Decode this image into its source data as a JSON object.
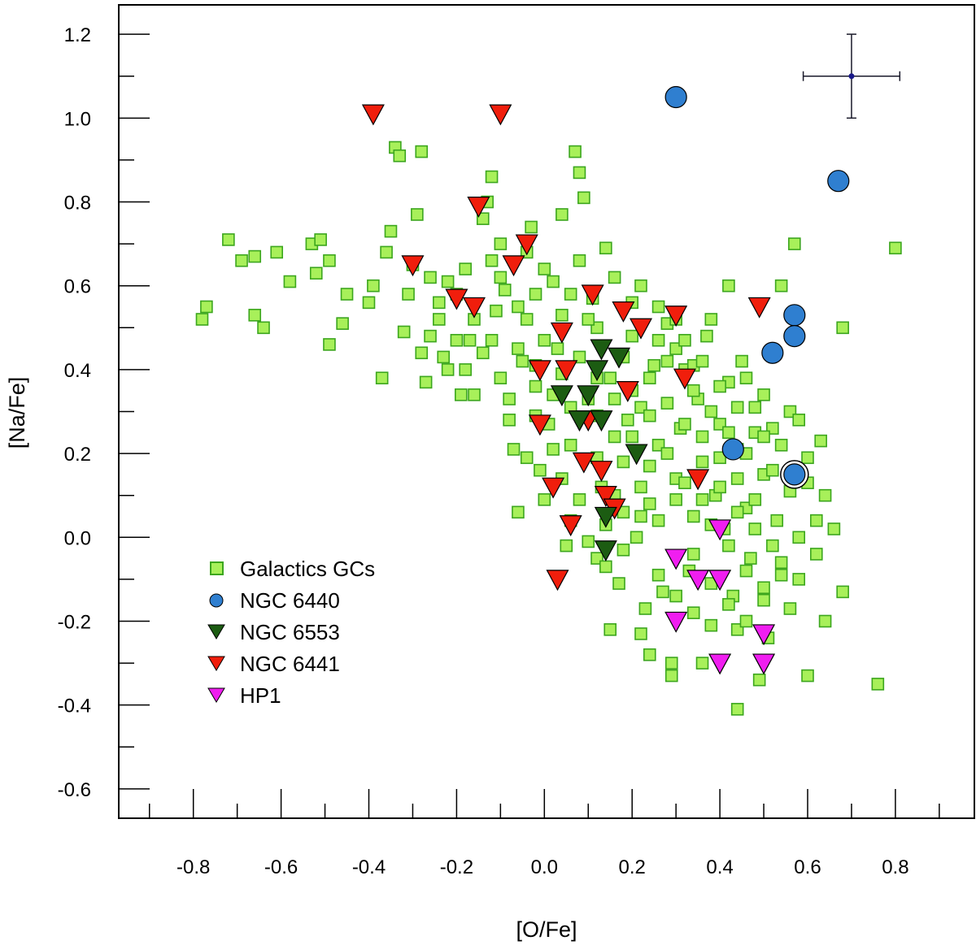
{
  "chart_data": {
    "type": "scatter",
    "title": "",
    "xlabel": "[O/Fe]",
    "ylabel": "[Na/Fe]",
    "xlim": [
      -0.97,
      0.98
    ],
    "ylim": [
      -0.67,
      1.27
    ],
    "x_ticks": [
      "-0.8",
      "-0.6",
      "-0.4",
      "-0.2",
      "0.0",
      "0.2",
      "0.4",
      "0.6",
      "0.8"
    ],
    "x_tick_values": [
      -0.8,
      -0.6,
      -0.4,
      -0.2,
      0.0,
      0.2,
      0.4,
      0.6,
      0.8
    ],
    "y_ticks": [
      "-0.6",
      "-0.4",
      "-0.2",
      "0.0",
      "0.2",
      "0.4",
      "0.6",
      "0.8",
      "1.0",
      "1.2"
    ],
    "y_tick_values": [
      -0.6,
      -0.4,
      -0.2,
      0.0,
      0.2,
      0.4,
      0.6,
      0.8,
      1.0,
      1.2
    ],
    "grid": false,
    "legend_position": "bottom-left",
    "colors": {
      "galactic_fill": "#a8f05a",
      "galactic_edge": "#3ca61e",
      "ngc6440": "#2f7fd0",
      "ngc6553": "#1c5c12",
      "ngc6441": "#f01e0c",
      "hp1": "#f01ef0"
    },
    "error_bar": {
      "x": 0.7,
      "y": 1.1,
      "xerr": 0.11,
      "yerr": 0.1
    },
    "series": [
      {
        "name": "Galactics GCs",
        "marker": "square",
        "points": [
          [
            -0.78,
            0.52
          ],
          [
            -0.77,
            0.55
          ],
          [
            -0.72,
            0.71
          ],
          [
            -0.69,
            0.66
          ],
          [
            -0.66,
            0.67
          ],
          [
            -0.66,
            0.53
          ],
          [
            -0.64,
            0.5
          ],
          [
            -0.61,
            0.68
          ],
          [
            -0.58,
            0.61
          ],
          [
            -0.53,
            0.7
          ],
          [
            -0.52,
            0.63
          ],
          [
            -0.51,
            0.71
          ],
          [
            -0.49,
            0.46
          ],
          [
            -0.49,
            0.66
          ],
          [
            -0.46,
            0.51
          ],
          [
            -0.45,
            0.58
          ],
          [
            -0.4,
            0.56
          ],
          [
            -0.39,
            0.6
          ],
          [
            -0.37,
            0.38
          ],
          [
            -0.36,
            0.68
          ],
          [
            -0.35,
            0.73
          ],
          [
            -0.34,
            0.93
          ],
          [
            -0.33,
            0.91
          ],
          [
            -0.32,
            0.49
          ],
          [
            -0.31,
            0.58
          ],
          [
            -0.3,
            0.65
          ],
          [
            -0.29,
            0.77
          ],
          [
            -0.28,
            0.92
          ],
          [
            -0.27,
            0.37
          ],
          [
            -0.26,
            0.48
          ],
          [
            -0.24,
            0.52
          ],
          [
            -0.23,
            0.43
          ],
          [
            -0.22,
            0.61
          ],
          [
            -0.2,
            0.58
          ],
          [
            -0.19,
            0.34
          ],
          [
            -0.18,
            0.4
          ],
          [
            -0.17,
            0.47
          ],
          [
            -0.16,
            0.34
          ],
          [
            -0.14,
            0.76
          ],
          [
            -0.13,
            0.8
          ],
          [
            -0.12,
            0.86
          ],
          [
            -0.11,
            0.54
          ],
          [
            -0.1,
            0.7
          ],
          [
            -0.09,
            0.59
          ],
          [
            -0.08,
            0.33
          ],
          [
            -0.07,
            0.21
          ],
          [
            -0.06,
            0.06
          ],
          [
            -0.05,
            0.42
          ],
          [
            -0.04,
            0.52
          ],
          [
            -0.03,
            0.74
          ],
          [
            -0.02,
            0.36
          ],
          [
            -0.01,
            0.16
          ],
          [
            0.0,
            0.09
          ],
          [
            0.01,
            0.27
          ],
          [
            0.02,
            0.61
          ],
          [
            0.03,
            0.45
          ],
          [
            0.04,
            0.77
          ],
          [
            0.05,
            -0.02
          ],
          [
            0.06,
            0.22
          ],
          [
            0.07,
            0.92
          ],
          [
            0.08,
            0.87
          ],
          [
            0.09,
            0.81
          ],
          [
            0.1,
            0.33
          ],
          [
            0.11,
            0.57
          ],
          [
            0.12,
            -0.05
          ],
          [
            0.13,
            0.12
          ],
          [
            0.14,
            0.03
          ],
          [
            0.15,
            0.38
          ],
          [
            0.16,
            0.62
          ],
          [
            0.17,
            -0.11
          ],
          [
            0.18,
            0.18
          ],
          [
            0.19,
            0.28
          ],
          [
            0.2,
            0.48
          ],
          [
            0.21,
            0.0
          ],
          [
            0.22,
            0.31
          ],
          [
            0.23,
            -0.17
          ],
          [
            0.24,
            0.08
          ],
          [
            0.25,
            0.41
          ],
          [
            0.26,
            0.22
          ],
          [
            0.27,
            -0.13
          ],
          [
            0.28,
            0.51
          ],
          [
            0.29,
            -0.3
          ],
          [
            0.3,
            0.14
          ],
          [
            0.31,
            0.26
          ],
          [
            0.32,
            0.4
          ],
          [
            0.33,
            -0.08
          ],
          [
            0.34,
            0.05
          ],
          [
            0.35,
            0.33
          ],
          [
            0.36,
            0.18
          ],
          [
            0.37,
            0.48
          ],
          [
            0.38,
            -0.21
          ],
          [
            0.39,
            0.1
          ],
          [
            0.4,
            0.27
          ],
          [
            0.41,
            0.02
          ],
          [
            0.42,
            0.37
          ],
          [
            0.43,
            -0.14
          ],
          [
            0.44,
            0.21
          ],
          [
            0.45,
            0.42
          ],
          [
            0.46,
            0.07
          ],
          [
            0.47,
            -0.05
          ],
          [
            0.48,
            0.31
          ],
          [
            0.5,
            0.15
          ],
          [
            0.51,
            -0.24
          ],
          [
            0.52,
            0.26
          ],
          [
            0.53,
            0.04
          ],
          [
            0.54,
            0.6
          ],
          [
            0.56,
            0.3
          ],
          [
            0.57,
            0.7
          ],
          [
            0.58,
            -0.1
          ],
          [
            0.6,
            0.19
          ],
          [
            0.62,
            0.04
          ],
          [
            0.63,
            0.23
          ],
          [
            0.64,
            0.1
          ],
          [
            0.68,
            0.5
          ],
          [
            0.76,
            -0.35
          ],
          [
            0.8,
            0.69
          ],
          [
            0.44,
            -0.41
          ],
          [
            0.29,
            -0.33
          ],
          [
            0.24,
            -0.28
          ],
          [
            0.36,
            -0.3
          ],
          [
            0.49,
            -0.34
          ],
          [
            0.6,
            -0.33
          ],
          [
            0.22,
            -0.23
          ],
          [
            0.15,
            -0.22
          ],
          [
            0.68,
            -0.13
          ],
          [
            0.64,
            -0.2
          ],
          [
            0.56,
            -0.17
          ],
          [
            0.44,
            -0.22
          ],
          [
            -0.28,
            0.44
          ],
          [
            -0.22,
            0.4
          ],
          [
            -0.12,
            0.47
          ],
          [
            -0.06,
            0.45
          ],
          [
            -0.02,
            0.58
          ],
          [
            0.04,
            0.53
          ],
          [
            0.08,
            0.66
          ],
          [
            0.12,
            0.5
          ],
          [
            0.14,
            0.69
          ],
          [
            0.2,
            0.56
          ],
          [
            0.22,
            0.6
          ],
          [
            0.26,
            0.47
          ],
          [
            0.3,
            0.45
          ],
          [
            0.34,
            0.41
          ],
          [
            0.38,
            0.52
          ],
          [
            0.42,
            0.6
          ],
          [
            0.46,
            0.38
          ],
          [
            0.5,
            0.34
          ],
          [
            0.54,
            0.22
          ],
          [
            0.58,
            0.28
          ],
          [
            0.6,
            0.13
          ],
          [
            0.62,
            -0.04
          ],
          [
            0.66,
            0.02
          ],
          [
            0.58,
            0.0
          ],
          [
            0.54,
            -0.06
          ],
          [
            0.5,
            -0.12
          ],
          [
            0.46,
            -0.08
          ],
          [
            0.42,
            -0.02
          ],
          [
            0.38,
            0.03
          ],
          [
            0.34,
            -0.04
          ],
          [
            0.3,
            0.09
          ],
          [
            0.26,
            0.04
          ],
          [
            0.22,
            0.12
          ],
          [
            0.18,
            0.06
          ],
          [
            0.16,
            0.24
          ],
          [
            0.12,
            0.19
          ],
          [
            0.08,
            0.09
          ],
          [
            0.04,
            0.14
          ],
          [
            0.02,
            0.34
          ],
          [
            -0.02,
            0.29
          ],
          [
            -0.04,
            0.19
          ],
          [
            -0.08,
            0.28
          ],
          [
            -0.1,
            0.38
          ],
          [
            -0.14,
            0.44
          ],
          [
            -0.16,
            0.52
          ],
          [
            -0.2,
            0.47
          ],
          [
            -0.24,
            0.56
          ],
          [
            -0.26,
            0.62
          ],
          [
            -0.18,
            0.64
          ],
          [
            -0.12,
            0.66
          ],
          [
            -0.04,
            0.68
          ],
          [
            0.0,
            0.64
          ],
          [
            0.06,
            0.58
          ],
          [
            0.1,
            0.52
          ],
          [
            0.18,
            0.43
          ],
          [
            0.24,
            0.38
          ],
          [
            0.28,
            0.32
          ],
          [
            0.32,
            0.27
          ],
          [
            0.36,
            0.24
          ],
          [
            0.4,
            0.19
          ],
          [
            0.44,
            0.14
          ],
          [
            0.48,
            0.09
          ],
          [
            0.52,
            0.16
          ],
          [
            0.56,
            0.11
          ],
          [
            0.48,
            0.25
          ],
          [
            0.44,
            0.31
          ],
          [
            0.4,
            0.36
          ],
          [
            0.36,
            0.42
          ],
          [
            0.32,
            0.47
          ],
          [
            0.28,
            0.42
          ],
          [
            0.24,
            0.29
          ],
          [
            0.2,
            0.24
          ],
          [
            0.16,
            0.33
          ],
          [
            0.12,
            0.38
          ],
          [
            0.08,
            0.43
          ],
          [
            0.04,
            0.39
          ],
          [
            0.0,
            0.47
          ],
          [
            -0.06,
            0.55
          ],
          [
            -0.1,
            0.62
          ],
          [
            0.06,
            0.04
          ],
          [
            0.1,
            -0.01
          ],
          [
            0.14,
            -0.07
          ],
          [
            0.18,
            -0.03
          ],
          [
            0.22,
            0.05
          ],
          [
            0.26,
            -0.09
          ],
          [
            0.3,
            -0.14
          ],
          [
            0.34,
            -0.18
          ],
          [
            0.38,
            -0.11
          ],
          [
            0.42,
            -0.16
          ],
          [
            0.46,
            -0.2
          ],
          [
            0.5,
            -0.15
          ],
          [
            0.54,
            -0.09
          ],
          [
            0.2,
            0.35
          ],
          [
            0.24,
            0.17
          ],
          [
            0.28,
            0.2
          ],
          [
            0.32,
            0.13
          ],
          [
            0.36,
            0.09
          ],
          [
            0.4,
            0.12
          ],
          [
            0.44,
            0.06
          ],
          [
            0.48,
            0.02
          ],
          [
            0.52,
            -0.02
          ],
          [
            0.16,
            0.1
          ],
          [
            0.12,
            0.29
          ],
          [
            0.06,
            0.31
          ],
          [
            0.02,
            0.21
          ],
          [
            -0.02,
            0.41
          ],
          [
            0.26,
            0.55
          ],
          [
            0.3,
            0.52
          ],
          [
            0.34,
            0.35
          ],
          [
            0.38,
            0.3
          ],
          [
            0.42,
            0.25
          ],
          [
            0.46,
            0.2
          ],
          [
            0.5,
            0.24
          ]
        ]
      },
      {
        "name": "NGC 6440",
        "marker": "circle",
        "points": [
          [
            0.3,
            1.05
          ],
          [
            0.67,
            0.85
          ],
          [
            0.57,
            0.53
          ],
          [
            0.57,
            0.48
          ],
          [
            0.52,
            0.44
          ],
          [
            0.43,
            0.21
          ],
          [
            0.57,
            0.15
          ]
        ],
        "highlighted_point": [
          0.57,
          0.15
        ]
      },
      {
        "name": "NGC 6553",
        "marker": "triangle-down",
        "points": [
          [
            0.13,
            0.45
          ],
          [
            0.17,
            0.43
          ],
          [
            0.12,
            0.4
          ],
          [
            0.04,
            0.34
          ],
          [
            0.1,
            0.34
          ],
          [
            0.08,
            0.28
          ],
          [
            0.13,
            0.28
          ],
          [
            0.21,
            0.2
          ],
          [
            0.14,
            0.05
          ],
          [
            0.14,
            -0.03
          ]
        ]
      },
      {
        "name": "NGC 6441",
        "marker": "triangle-down",
        "points": [
          [
            -0.39,
            1.01
          ],
          [
            -0.1,
            1.01
          ],
          [
            -0.15,
            0.79
          ],
          [
            -0.04,
            0.7
          ],
          [
            -0.07,
            0.65
          ],
          [
            -0.3,
            0.65
          ],
          [
            -0.2,
            0.57
          ],
          [
            -0.16,
            0.55
          ],
          [
            0.11,
            0.58
          ],
          [
            0.18,
            0.54
          ],
          [
            0.3,
            0.53
          ],
          [
            0.49,
            0.55
          ],
          [
            0.22,
            0.5
          ],
          [
            0.04,
            0.49
          ],
          [
            -0.01,
            0.4
          ],
          [
            0.05,
            0.4
          ],
          [
            0.32,
            0.38
          ],
          [
            0.19,
            0.35
          ],
          [
            -0.01,
            0.27
          ],
          [
            0.1,
            0.28
          ],
          [
            0.09,
            0.18
          ],
          [
            0.13,
            0.16
          ],
          [
            0.35,
            0.14
          ],
          [
            0.02,
            0.12
          ],
          [
            0.14,
            0.1
          ],
          [
            0.16,
            0.07
          ],
          [
            0.06,
            0.03
          ],
          [
            0.03,
            -0.1
          ]
        ]
      },
      {
        "name": "HP1",
        "marker": "triangle-down",
        "points": [
          [
            0.4,
            0.02
          ],
          [
            0.3,
            -0.05
          ],
          [
            0.35,
            -0.1
          ],
          [
            0.4,
            -0.1
          ],
          [
            0.3,
            -0.2
          ],
          [
            0.5,
            -0.23
          ],
          [
            0.4,
            -0.3
          ],
          [
            0.5,
            -0.3
          ]
        ]
      }
    ]
  }
}
